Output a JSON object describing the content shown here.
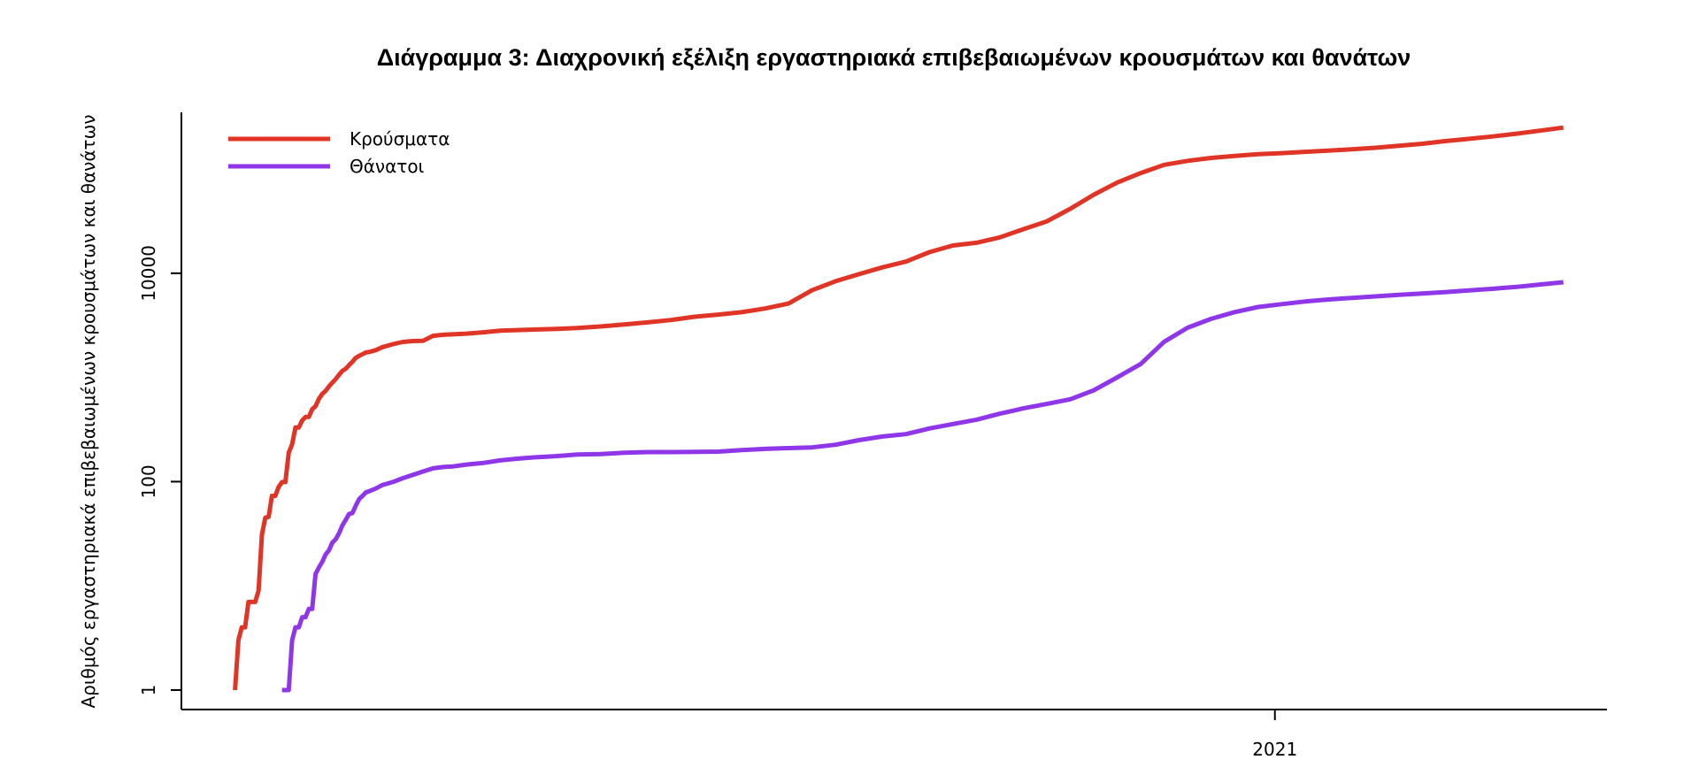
{
  "chart_data": {
    "type": "line",
    "title": "Διάγραμμα 3: Διαχρονική εξέλιξη εργαστηριακά επιβεβαιωμένων κρουσμάτων και θανάτων",
    "ylabel": "Αριθμός εργαστηριακά επιβεβαιωμένων κρουσμάτων και θανάτων",
    "xlabel": "",
    "y_scale": "log",
    "ylim": [
      0.65,
      350000
    ],
    "xlim": [
      "2020-02-10",
      "2021-04-10"
    ],
    "y_ticks": [
      1,
      100,
      10000
    ],
    "y_tick_labels": [
      "1",
      "100",
      "10000"
    ],
    "x_ticks": [
      "2021-01-01"
    ],
    "x_tick_labels": [
      "2021"
    ],
    "grid": false,
    "legend_position": "top-left",
    "series": [
      {
        "name": "Κρούσματα",
        "color": "#e03426",
        "points": [
          [
            "2020-02-26",
            1
          ],
          [
            "2020-02-27",
            3
          ],
          [
            "2020-02-28",
            4
          ],
          [
            "2020-02-29",
            4
          ],
          [
            "2020-03-01",
            7
          ],
          [
            "2020-03-02",
            7
          ],
          [
            "2020-03-03",
            7
          ],
          [
            "2020-03-04",
            9
          ],
          [
            "2020-03-05",
            31
          ],
          [
            "2020-03-06",
            45
          ],
          [
            "2020-03-07",
            46
          ],
          [
            "2020-03-08",
            73
          ],
          [
            "2020-03-09",
            73
          ],
          [
            "2020-03-10",
            89
          ],
          [
            "2020-03-11",
            99
          ],
          [
            "2020-03-12",
            99
          ],
          [
            "2020-03-13",
            190
          ],
          [
            "2020-03-14",
            228
          ],
          [
            "2020-03-15",
            331
          ],
          [
            "2020-03-16",
            331
          ],
          [
            "2020-03-17",
            387
          ],
          [
            "2020-03-18",
            418
          ],
          [
            "2020-03-19",
            418
          ],
          [
            "2020-03-20",
            495
          ],
          [
            "2020-03-21",
            530
          ],
          [
            "2020-03-22",
            624
          ],
          [
            "2020-03-23",
            695
          ],
          [
            "2020-03-24",
            743
          ],
          [
            "2020-03-25",
            821
          ],
          [
            "2020-03-26",
            892
          ],
          [
            "2020-03-27",
            966
          ],
          [
            "2020-03-28",
            1061
          ],
          [
            "2020-03-29",
            1156
          ],
          [
            "2020-03-30",
            1212
          ],
          [
            "2020-03-31",
            1314
          ],
          [
            "2020-04-01",
            1415
          ],
          [
            "2020-04-02",
            1544
          ],
          [
            "2020-04-03",
            1613
          ],
          [
            "2020-04-04",
            1673
          ],
          [
            "2020-04-05",
            1735
          ],
          [
            "2020-04-06",
            1755
          ],
          [
            "2020-04-08",
            1832
          ],
          [
            "2020-04-10",
            1955
          ],
          [
            "2020-04-13",
            2081
          ],
          [
            "2020-04-16",
            2192
          ],
          [
            "2020-04-19",
            2235
          ],
          [
            "2020-04-22",
            2245
          ],
          [
            "2020-04-25",
            2506
          ],
          [
            "2020-04-28",
            2566
          ],
          [
            "2020-05-01",
            2591
          ],
          [
            "2020-05-05",
            2632
          ],
          [
            "2020-05-10",
            2710
          ],
          [
            "2020-05-15",
            2810
          ],
          [
            "2020-05-20",
            2850
          ],
          [
            "2020-05-25",
            2882
          ],
          [
            "2020-05-31",
            2918
          ],
          [
            "2020-06-07",
            2980
          ],
          [
            "2020-06-14",
            3088
          ],
          [
            "2020-06-21",
            3227
          ],
          [
            "2020-06-28",
            3376
          ],
          [
            "2020-07-05",
            3562
          ],
          [
            "2020-07-12",
            3826
          ],
          [
            "2020-07-19",
            4007
          ],
          [
            "2020-07-26",
            4227
          ],
          [
            "2020-08-02",
            4587
          ],
          [
            "2020-08-09",
            5123
          ],
          [
            "2020-08-16",
            6858
          ],
          [
            "2020-08-23",
            8381
          ],
          [
            "2020-08-30",
            9800
          ],
          [
            "2020-09-06",
            11386
          ],
          [
            "2020-09-13",
            12937
          ],
          [
            "2020-09-20",
            15928
          ],
          [
            "2020-09-27",
            18475
          ],
          [
            "2020-10-04",
            19613
          ],
          [
            "2020-10-11",
            22078
          ],
          [
            "2020-10-18",
            26469
          ],
          [
            "2020-10-25",
            31496
          ],
          [
            "2020-11-01",
            41527
          ],
          [
            "2020-11-08",
            56698
          ],
          [
            "2020-11-15",
            74205
          ],
          [
            "2020-11-22",
            91619
          ],
          [
            "2020-11-29",
            109705
          ],
          [
            "2020-12-06",
            119986
          ],
          [
            "2020-12-13",
            127972
          ],
          [
            "2020-12-20",
            133635
          ],
          [
            "2020-12-27",
            138850
          ],
          [
            "2021-01-03",
            142062
          ],
          [
            "2021-01-10",
            146435
          ],
          [
            "2021-01-17",
            150479
          ],
          [
            "2021-01-24",
            154796
          ],
          [
            "2021-01-31",
            160207
          ],
          [
            "2021-02-07",
            167123
          ],
          [
            "2021-02-14",
            174938
          ],
          [
            "2021-02-21",
            185733
          ],
          [
            "2021-02-28",
            194942
          ],
          [
            "2021-03-07",
            205631
          ],
          [
            "2021-03-14",
            218594
          ],
          [
            "2021-03-21",
            233497
          ],
          [
            "2021-03-28",
            249845
          ]
        ]
      },
      {
        "name": "Θάνατοι",
        "color": "#8f36e8",
        "points": [
          [
            "2020-03-11",
            1
          ],
          [
            "2020-03-12",
            1
          ],
          [
            "2020-03-13",
            1
          ],
          [
            "2020-03-14",
            3
          ],
          [
            "2020-03-15",
            4
          ],
          [
            "2020-03-16",
            4
          ],
          [
            "2020-03-17",
            5
          ],
          [
            "2020-03-18",
            5
          ],
          [
            "2020-03-19",
            6
          ],
          [
            "2020-03-20",
            6
          ],
          [
            "2020-03-21",
            13
          ],
          [
            "2020-03-22",
            15
          ],
          [
            "2020-03-23",
            17
          ],
          [
            "2020-03-24",
            20
          ],
          [
            "2020-03-25",
            22
          ],
          [
            "2020-03-26",
            26
          ],
          [
            "2020-03-27",
            28
          ],
          [
            "2020-03-28",
            32
          ],
          [
            "2020-03-29",
            38
          ],
          [
            "2020-03-30",
            43
          ],
          [
            "2020-03-31",
            49
          ],
          [
            "2020-04-01",
            50
          ],
          [
            "2020-04-02",
            59
          ],
          [
            "2020-04-03",
            68
          ],
          [
            "2020-04-04",
            73
          ],
          [
            "2020-04-05",
            79
          ],
          [
            "2020-04-06",
            81
          ],
          [
            "2020-04-08",
            86
          ],
          [
            "2020-04-10",
            93
          ],
          [
            "2020-04-13",
            99
          ],
          [
            "2020-04-16",
            108
          ],
          [
            "2020-04-19",
            116
          ],
          [
            "2020-04-22",
            125
          ],
          [
            "2020-04-25",
            134
          ],
          [
            "2020-04-28",
            138
          ],
          [
            "2020-05-01",
            140
          ],
          [
            "2020-05-05",
            146
          ],
          [
            "2020-05-10",
            151
          ],
          [
            "2020-05-15",
            160
          ],
          [
            "2020-05-20",
            166
          ],
          [
            "2020-05-25",
            171
          ],
          [
            "2020-05-31",
            175
          ],
          [
            "2020-06-07",
            182
          ],
          [
            "2020-06-14",
            184
          ],
          [
            "2020-06-21",
            189
          ],
          [
            "2020-06-28",
            192
          ],
          [
            "2020-07-05",
            192
          ],
          [
            "2020-07-12",
            193
          ],
          [
            "2020-07-19",
            194
          ],
          [
            "2020-07-26",
            201
          ],
          [
            "2020-08-02",
            206
          ],
          [
            "2020-08-09",
            210
          ],
          [
            "2020-08-16",
            213
          ],
          [
            "2020-08-23",
            226
          ],
          [
            "2020-08-30",
            250
          ],
          [
            "2020-09-06",
            271
          ],
          [
            "2020-09-13",
            286
          ],
          [
            "2020-09-20",
            324
          ],
          [
            "2020-09-27",
            357
          ],
          [
            "2020-10-04",
            393
          ],
          [
            "2020-10-11",
            449
          ],
          [
            "2020-10-18",
            505
          ],
          [
            "2020-10-25",
            557
          ],
          [
            "2020-11-01",
            617
          ],
          [
            "2020-11-08",
            752
          ],
          [
            "2020-11-15",
            1002
          ],
          [
            "2020-11-22",
            1346
          ],
          [
            "2020-11-29",
            2199
          ],
          [
            "2020-12-06",
            3004
          ],
          [
            "2020-12-13",
            3653
          ],
          [
            "2020-12-20",
            4234
          ],
          [
            "2020-12-27",
            4745
          ],
          [
            "2021-01-03",
            5050
          ],
          [
            "2021-01-10",
            5350
          ],
          [
            "2021-01-17",
            5600
          ],
          [
            "2021-01-24",
            5800
          ],
          [
            "2021-01-31",
            6000
          ],
          [
            "2021-02-07",
            6200
          ],
          [
            "2021-02-14",
            6400
          ],
          [
            "2021-02-21",
            6600
          ],
          [
            "2021-02-28",
            6850
          ],
          [
            "2021-03-07",
            7100
          ],
          [
            "2021-03-14",
            7400
          ],
          [
            "2021-03-21",
            7800
          ],
          [
            "2021-03-28",
            8200
          ]
        ]
      }
    ]
  }
}
